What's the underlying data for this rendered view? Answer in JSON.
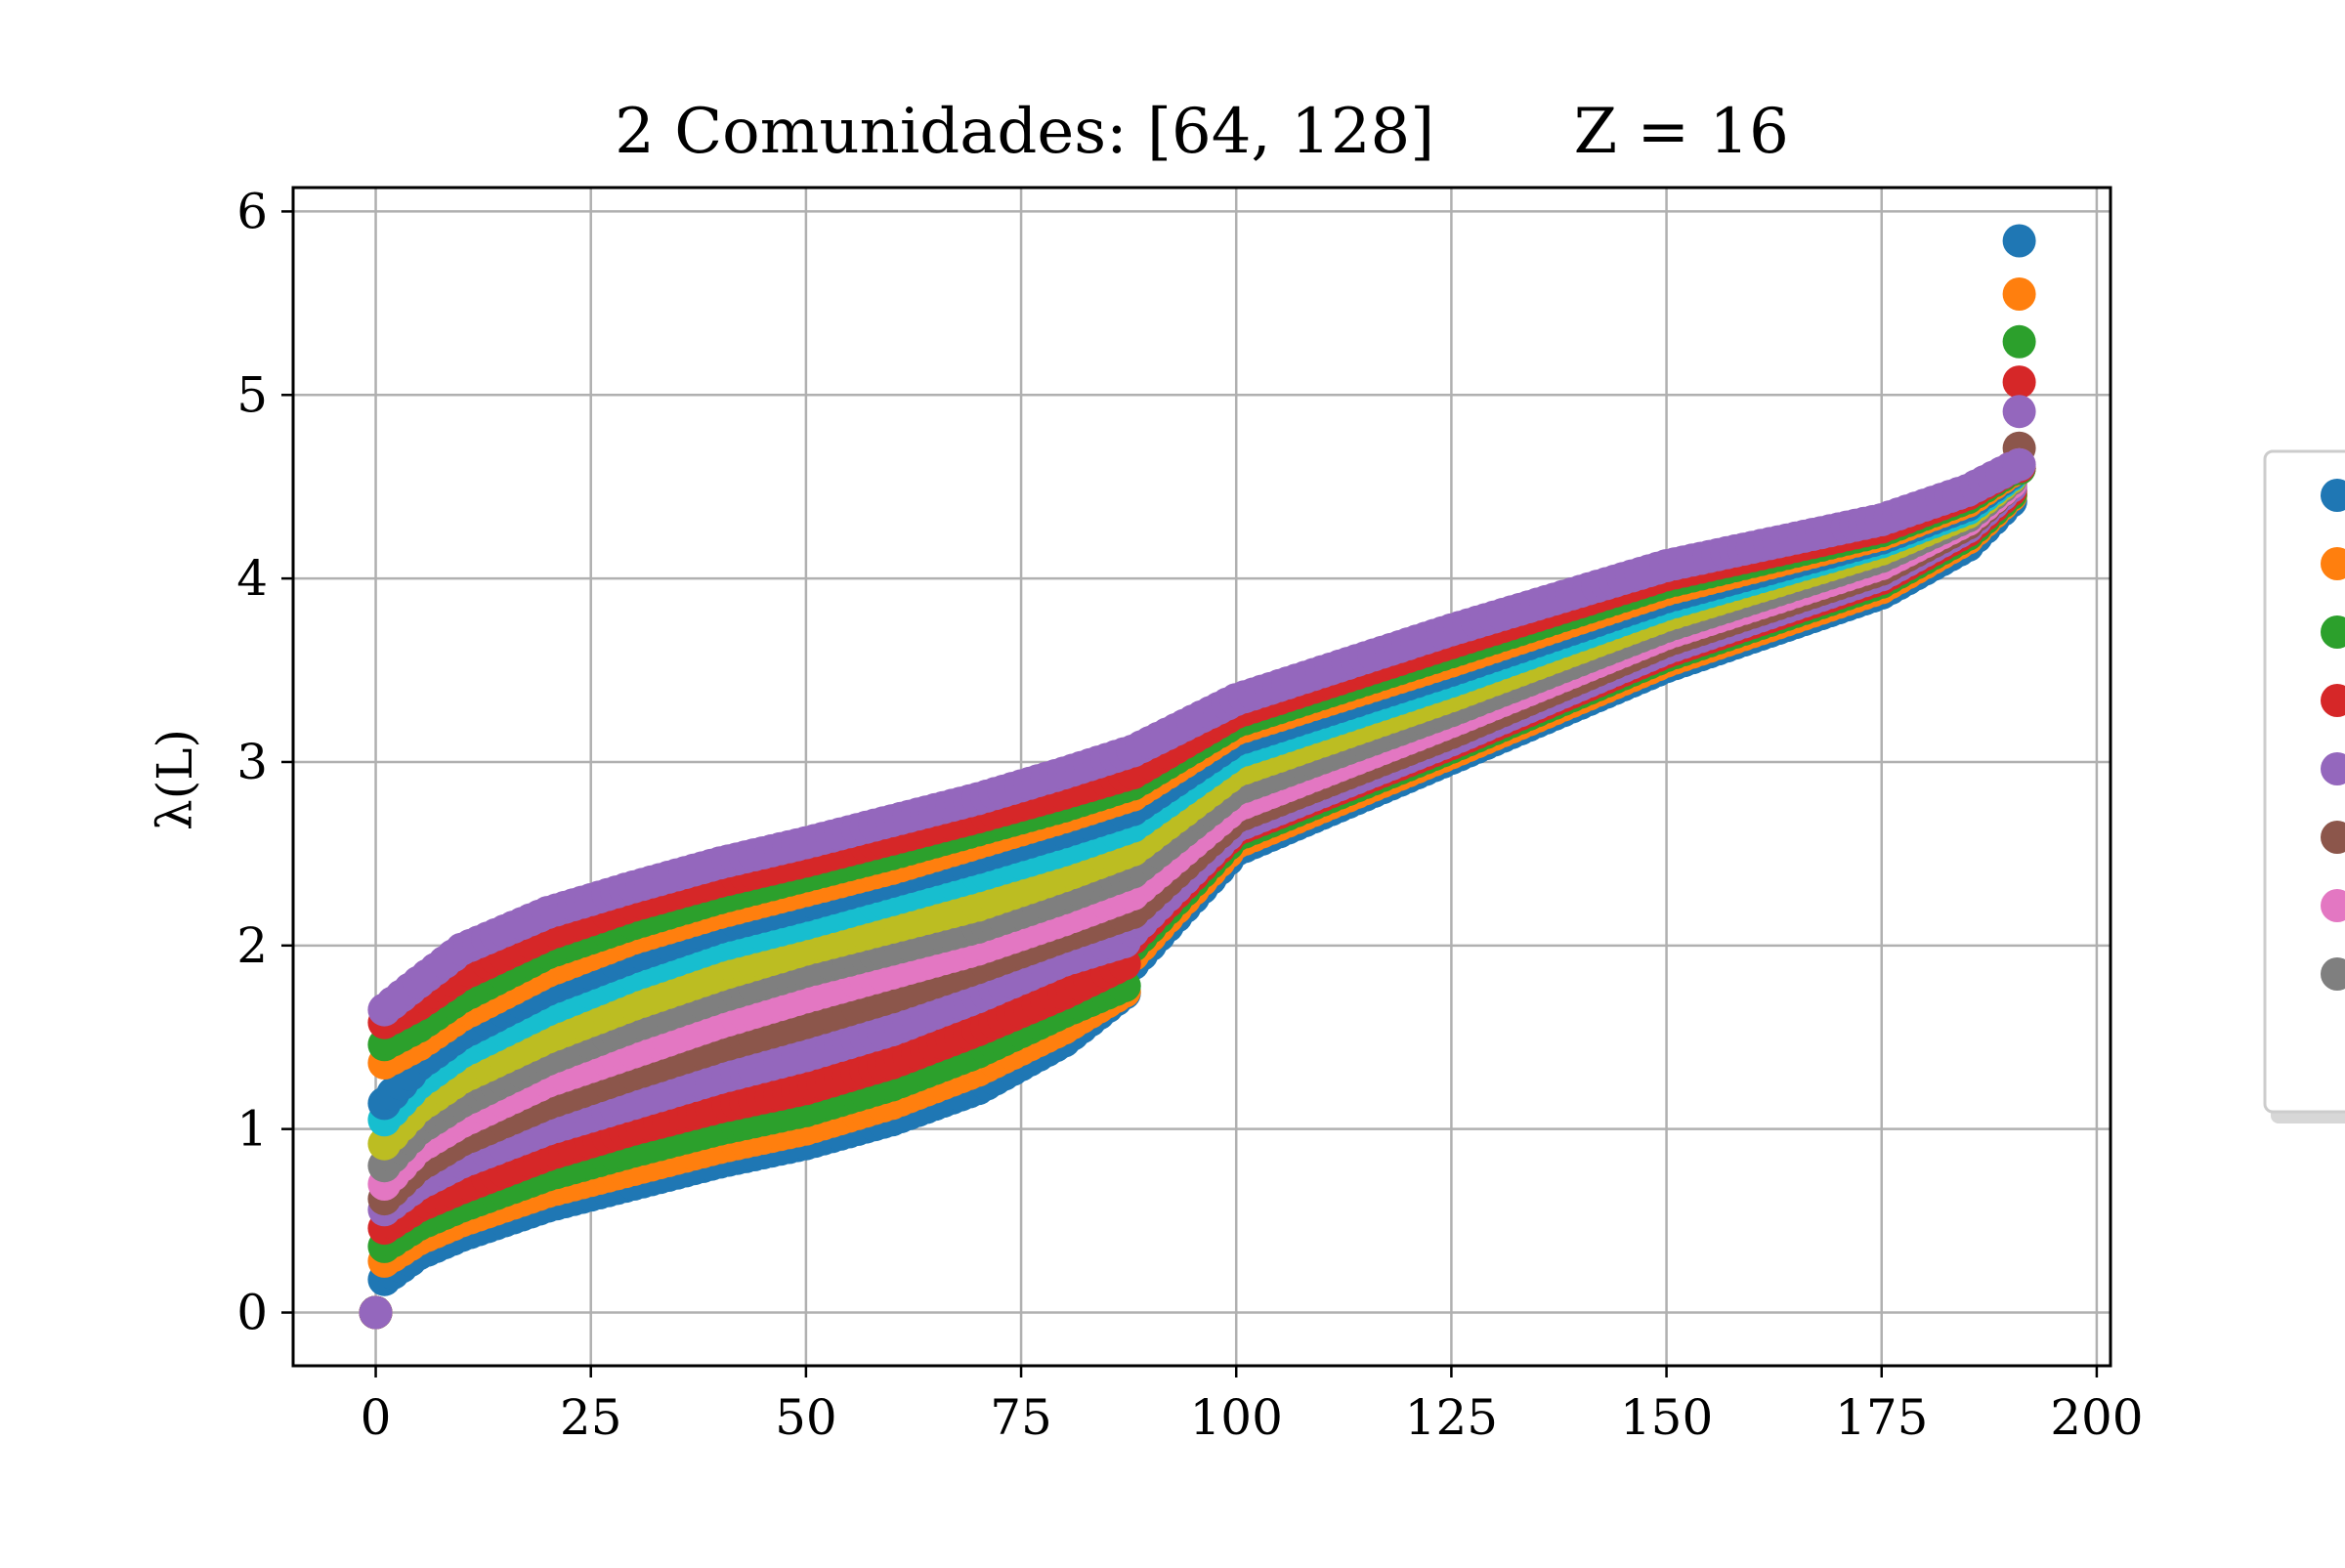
{
  "chart_data": {
    "type": "scatter",
    "title": "2 Comunidades: [64, 128]       Z = 16",
    "xlabel": "",
    "ylabel": "λ(L)",
    "xlim": [
      -9.6,
      201.6
    ],
    "ylim": [
      -0.29,
      6.13
    ],
    "x_ticks": [
      0,
      25,
      50,
      75,
      100,
      125,
      150,
      175,
      200
    ],
    "y_ticks": [
      0,
      1,
      2,
      3,
      4,
      5,
      6
    ],
    "grid": true,
    "legend": "right (partially cut off, labels not visible)",
    "n_points_per_series": 192,
    "series": [
      {
        "color": "#1f77b4",
        "start": 0.18,
        "end": 5.84,
        "split_low": 1.74,
        "split_high": 1.9,
        "knots": [
          [
            1,
            0.18
          ],
          [
            5,
            0.32
          ],
          [
            10,
            0.42
          ],
          [
            20,
            0.58
          ],
          [
            30,
            0.7
          ],
          [
            40,
            0.82
          ],
          [
            50,
            0.92
          ],
          [
            60,
            1.05
          ],
          [
            70,
            1.22
          ],
          [
            80,
            1.48
          ],
          [
            87,
            1.74
          ],
          [
            88,
            1.9
          ],
          [
            100,
            2.52
          ],
          [
            125,
            3.02
          ],
          [
            150,
            3.52
          ],
          [
            175,
            3.92
          ],
          [
            185,
            4.18
          ],
          [
            190,
            4.42
          ],
          [
            191,
            5.84
          ]
        ]
      },
      {
        "color": "#ff7f0e",
        "start": 0.28,
        "end": 5.55,
        "split_low": 1.75,
        "split_high": 1.95,
        "knots": [
          [
            1,
            0.28
          ],
          [
            5,
            0.4
          ],
          [
            10,
            0.5
          ],
          [
            20,
            0.66
          ],
          [
            30,
            0.78
          ],
          [
            40,
            0.9
          ],
          [
            50,
            1.0
          ],
          [
            60,
            1.14
          ],
          [
            70,
            1.32
          ],
          [
            80,
            1.55
          ],
          [
            87,
            1.75
          ],
          [
            88,
            1.95
          ],
          [
            100,
            2.56
          ],
          [
            125,
            3.05
          ],
          [
            150,
            3.55
          ],
          [
            175,
            3.95
          ],
          [
            185,
            4.22
          ],
          [
            190,
            4.45
          ],
          [
            191,
            5.55
          ]
        ]
      },
      {
        "color": "#2ca02c",
        "start": 0.36,
        "end": 5.29,
        "split_low": 1.78,
        "split_high": 2.0,
        "knots": [
          [
            1,
            0.36
          ],
          [
            5,
            0.48
          ],
          [
            10,
            0.58
          ],
          [
            20,
            0.75
          ],
          [
            30,
            0.88
          ],
          [
            40,
            1.0
          ],
          [
            50,
            1.1
          ],
          [
            60,
            1.24
          ],
          [
            70,
            1.42
          ],
          [
            80,
            1.64
          ],
          [
            87,
            1.78
          ],
          [
            88,
            2.0
          ],
          [
            100,
            2.6
          ],
          [
            125,
            3.08
          ],
          [
            150,
            3.58
          ],
          [
            175,
            3.98
          ],
          [
            185,
            4.24
          ],
          [
            190,
            4.46
          ],
          [
            191,
            5.29
          ]
        ]
      },
      {
        "color": "#d62728",
        "start": 0.46,
        "end": 5.07,
        "split_low": 1.9,
        "split_high": 2.04,
        "knots": [
          [
            1,
            0.46
          ],
          [
            5,
            0.58
          ],
          [
            10,
            0.68
          ],
          [
            20,
            0.86
          ],
          [
            30,
            1.0
          ],
          [
            40,
            1.12
          ],
          [
            50,
            1.22
          ],
          [
            60,
            1.36
          ],
          [
            70,
            1.54
          ],
          [
            80,
            1.74
          ],
          [
            87,
            1.9
          ],
          [
            88,
            2.04
          ],
          [
            100,
            2.63
          ],
          [
            125,
            3.1
          ],
          [
            150,
            3.6
          ],
          [
            175,
            4.0
          ],
          [
            185,
            4.26
          ],
          [
            190,
            4.48
          ],
          [
            191,
            5.07
          ]
        ]
      },
      {
        "color": "#9467bd",
        "start": 0.56,
        "end": 4.91,
        "split_low": 2.02,
        "split_high": 2.08,
        "knots": [
          [
            1,
            0.56
          ],
          [
            5,
            0.7
          ],
          [
            10,
            0.82
          ],
          [
            20,
            1.0
          ],
          [
            30,
            1.14
          ],
          [
            40,
            1.28
          ],
          [
            50,
            1.4
          ],
          [
            60,
            1.54
          ],
          [
            70,
            1.72
          ],
          [
            80,
            1.92
          ],
          [
            87,
            2.02
          ],
          [
            88,
            2.08
          ],
          [
            100,
            2.65
          ],
          [
            125,
            3.12
          ],
          [
            150,
            3.62
          ],
          [
            175,
            4.02
          ],
          [
            185,
            4.28
          ],
          [
            190,
            4.5
          ],
          [
            191,
            4.91
          ]
        ]
      },
      {
        "color": "#8c564b",
        "start": 0.62,
        "end": 4.71,
        "knots": [
          [
            1,
            0.62
          ],
          [
            5,
            0.8
          ],
          [
            10,
            0.94
          ],
          [
            20,
            1.14
          ],
          [
            30,
            1.3
          ],
          [
            40,
            1.45
          ],
          [
            50,
            1.58
          ],
          [
            60,
            1.72
          ],
          [
            70,
            1.88
          ],
          [
            80,
            2.05
          ],
          [
            88,
            2.18
          ],
          [
            100,
            2.7
          ],
          [
            125,
            3.16
          ],
          [
            150,
            3.66
          ],
          [
            175,
            4.05
          ],
          [
            185,
            4.3
          ],
          [
            190,
            4.52
          ],
          [
            191,
            4.71
          ]
        ]
      },
      {
        "color": "#e377c2",
        "start": 0.7,
        "end": 4.62,
        "knots": [
          [
            1,
            0.7
          ],
          [
            5,
            0.9
          ],
          [
            10,
            1.04
          ],
          [
            20,
            1.26
          ],
          [
            30,
            1.42
          ],
          [
            40,
            1.58
          ],
          [
            50,
            1.72
          ],
          [
            60,
            1.85
          ],
          [
            70,
            1.98
          ],
          [
            80,
            2.14
          ],
          [
            88,
            2.28
          ],
          [
            100,
            2.76
          ],
          [
            125,
            3.22
          ],
          [
            150,
            3.7
          ],
          [
            175,
            4.08
          ],
          [
            185,
            4.32
          ],
          [
            190,
            4.52
          ],
          [
            191,
            4.62
          ]
        ]
      },
      {
        "color": "#7f7f7f",
        "start": 0.8,
        "end": 4.6,
        "knots": [
          [
            1,
            0.8
          ],
          [
            5,
            1.0
          ],
          [
            10,
            1.15
          ],
          [
            20,
            1.38
          ],
          [
            30,
            1.56
          ],
          [
            40,
            1.72
          ],
          [
            50,
            1.86
          ],
          [
            60,
            1.98
          ],
          [
            70,
            2.1
          ],
          [
            80,
            2.26
          ],
          [
            88,
            2.4
          ],
          [
            100,
            2.85
          ],
          [
            125,
            3.28
          ],
          [
            150,
            3.74
          ],
          [
            175,
            4.12
          ],
          [
            185,
            4.34
          ],
          [
            190,
            4.54
          ],
          [
            191,
            4.6
          ]
        ]
      },
      {
        "color": "#bcbd22",
        "start": 0.92,
        "end": 4.6,
        "knots": [
          [
            1,
            0.92
          ],
          [
            5,
            1.12
          ],
          [
            10,
            1.28
          ],
          [
            20,
            1.5
          ],
          [
            30,
            1.68
          ],
          [
            40,
            1.84
          ],
          [
            50,
            1.98
          ],
          [
            60,
            2.1
          ],
          [
            70,
            2.22
          ],
          [
            80,
            2.38
          ],
          [
            88,
            2.52
          ],
          [
            100,
            2.95
          ],
          [
            125,
            3.36
          ],
          [
            150,
            3.8
          ],
          [
            175,
            4.16
          ],
          [
            185,
            4.36
          ],
          [
            190,
            4.55
          ],
          [
            191,
            4.6
          ]
        ]
      },
      {
        "color": "#17becf",
        "start": 1.05,
        "end": 4.6,
        "knots": [
          [
            1,
            1.05
          ],
          [
            5,
            1.25
          ],
          [
            10,
            1.42
          ],
          [
            20,
            1.65
          ],
          [
            30,
            1.84
          ],
          [
            40,
            2.0
          ],
          [
            50,
            2.12
          ],
          [
            60,
            2.25
          ],
          [
            70,
            2.38
          ],
          [
            80,
            2.52
          ],
          [
            88,
            2.65
          ],
          [
            100,
            3.05
          ],
          [
            125,
            3.44
          ],
          [
            150,
            3.86
          ],
          [
            175,
            4.2
          ],
          [
            185,
            4.38
          ],
          [
            190,
            4.56
          ],
          [
            191,
            4.6
          ]
        ]
      },
      {
        "color": "#1f77b4",
        "start": 1.14,
        "end": 4.6,
        "knots": [
          [
            1,
            1.14
          ],
          [
            5,
            1.35
          ],
          [
            10,
            1.52
          ],
          [
            20,
            1.76
          ],
          [
            30,
            1.94
          ],
          [
            40,
            2.1
          ],
          [
            50,
            2.22
          ],
          [
            60,
            2.35
          ],
          [
            70,
            2.48
          ],
          [
            80,
            2.62
          ],
          [
            88,
            2.74
          ],
          [
            100,
            3.12
          ],
          [
            125,
            3.5
          ],
          [
            150,
            3.9
          ],
          [
            175,
            4.22
          ],
          [
            185,
            4.4
          ],
          [
            190,
            4.57
          ],
          [
            191,
            4.6
          ]
        ]
      },
      {
        "color": "#ff7f0e",
        "start": 1.36,
        "end": 4.6,
        "knots": [
          [
            1,
            1.36
          ],
          [
            5,
            1.46
          ],
          [
            10,
            1.62
          ],
          [
            20,
            1.86
          ],
          [
            30,
            2.04
          ],
          [
            40,
            2.18
          ],
          [
            50,
            2.3
          ],
          [
            60,
            2.42
          ],
          [
            70,
            2.56
          ],
          [
            80,
            2.7
          ],
          [
            88,
            2.82
          ],
          [
            100,
            3.18
          ],
          [
            125,
            3.55
          ],
          [
            150,
            3.94
          ],
          [
            175,
            4.24
          ],
          [
            185,
            4.42
          ],
          [
            190,
            4.58
          ],
          [
            191,
            4.6
          ]
        ]
      },
      {
        "color": "#2ca02c",
        "start": 1.46,
        "end": 4.6,
        "knots": [
          [
            1,
            1.46
          ],
          [
            5,
            1.56
          ],
          [
            10,
            1.72
          ],
          [
            20,
            1.96
          ],
          [
            30,
            2.12
          ],
          [
            40,
            2.26
          ],
          [
            50,
            2.38
          ],
          [
            60,
            2.5
          ],
          [
            70,
            2.63
          ],
          [
            80,
            2.76
          ],
          [
            88,
            2.88
          ],
          [
            100,
            3.22
          ],
          [
            125,
            3.6
          ],
          [
            150,
            3.98
          ],
          [
            175,
            4.26
          ],
          [
            185,
            4.44
          ],
          [
            190,
            4.59
          ],
          [
            191,
            4.6
          ]
        ]
      },
      {
        "color": "#d62728",
        "start": 1.58,
        "end": 4.61,
        "knots": [
          [
            1,
            1.58
          ],
          [
            5,
            1.68
          ],
          [
            10,
            1.84
          ],
          [
            20,
            2.06
          ],
          [
            30,
            2.22
          ],
          [
            40,
            2.35
          ],
          [
            50,
            2.46
          ],
          [
            60,
            2.58
          ],
          [
            70,
            2.7
          ],
          [
            80,
            2.83
          ],
          [
            88,
            2.94
          ],
          [
            100,
            3.27
          ],
          [
            125,
            3.65
          ],
          [
            150,
            4.02
          ],
          [
            175,
            4.28
          ],
          [
            185,
            4.46
          ],
          [
            190,
            4.6
          ],
          [
            191,
            4.61
          ]
        ]
      },
      {
        "color": "#9467bd",
        "start": 1.65,
        "end": 4.62,
        "knots": [
          [
            1,
            1.65
          ],
          [
            5,
            1.8
          ],
          [
            10,
            1.98
          ],
          [
            20,
            2.18
          ],
          [
            30,
            2.32
          ],
          [
            40,
            2.45
          ],
          [
            50,
            2.56
          ],
          [
            60,
            2.68
          ],
          [
            70,
            2.8
          ],
          [
            80,
            2.94
          ],
          [
            88,
            3.06
          ],
          [
            100,
            3.34
          ],
          [
            125,
            3.72
          ],
          [
            150,
            4.07
          ],
          [
            175,
            4.32
          ],
          [
            185,
            4.48
          ],
          [
            190,
            4.6
          ],
          [
            191,
            4.62
          ]
        ]
      }
    ]
  }
}
